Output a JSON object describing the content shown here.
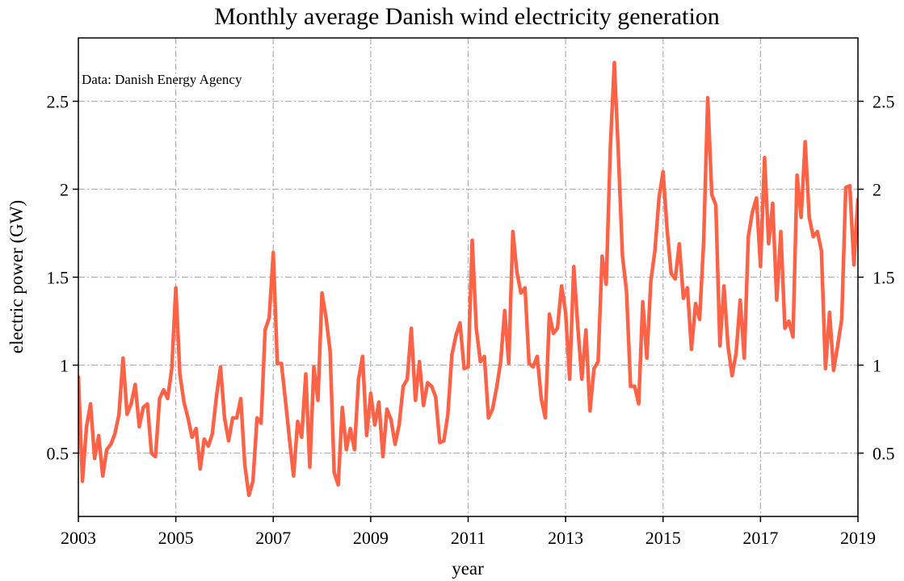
{
  "chart_data": {
    "type": "line",
    "title": "Monthly average Danish wind electricity generation",
    "annotation": "Data: Danish Energy Agency",
    "xlabel": "year",
    "ylabel": "electric power (GW)",
    "color": "#ff6347",
    "grid": true,
    "xlim": [
      2003,
      2019
    ],
    "xticks": [
      2003,
      2005,
      2007,
      2009,
      2011,
      2013,
      2015,
      2017,
      2019
    ],
    "ylim": [
      0.14,
      2.86
    ],
    "yticks": [
      0.5,
      1.0,
      1.5,
      2.0,
      2.5
    ],
    "y2lim": [
      0.14,
      2.86
    ],
    "y2ticks": [
      0.5,
      1.0,
      1.5,
      2.0,
      2.5
    ],
    "x": [
      2003,
      2003.083,
      2003.167,
      2003.25,
      2003.333,
      2003.417,
      2003.5,
      2003.583,
      2003.667,
      2003.75,
      2003.833,
      2003.917,
      2004,
      2004.083,
      2004.167,
      2004.25,
      2004.333,
      2004.417,
      2004.5,
      2004.583,
      2004.667,
      2004.75,
      2004.833,
      2004.917,
      2005,
      2005.083,
      2005.167,
      2005.25,
      2005.333,
      2005.417,
      2005.5,
      2005.583,
      2005.667,
      2005.75,
      2005.833,
      2005.917,
      2006,
      2006.083,
      2006.167,
      2006.25,
      2006.333,
      2006.417,
      2006.5,
      2006.583,
      2006.667,
      2006.75,
      2006.833,
      2006.917,
      2007,
      2007.083,
      2007.167,
      2007.25,
      2007.333,
      2007.417,
      2007.5,
      2007.583,
      2007.667,
      2007.75,
      2007.833,
      2007.917,
      2008,
      2008.083,
      2008.167,
      2008.25,
      2008.333,
      2008.417,
      2008.5,
      2008.583,
      2008.667,
      2008.75,
      2008.833,
      2008.917,
      2009,
      2009.083,
      2009.167,
      2009.25,
      2009.333,
      2009.417,
      2009.5,
      2009.583,
      2009.667,
      2009.75,
      2009.833,
      2009.917,
      2010,
      2010.083,
      2010.167,
      2010.25,
      2010.333,
      2010.417,
      2010.5,
      2010.583,
      2010.667,
      2010.75,
      2010.833,
      2010.917,
      2011,
      2011.083,
      2011.167,
      2011.25,
      2011.333,
      2011.417,
      2011.5,
      2011.583,
      2011.667,
      2011.75,
      2011.833,
      2011.917,
      2012,
      2012.083,
      2012.167,
      2012.25,
      2012.333,
      2012.417,
      2012.5,
      2012.583,
      2012.667,
      2012.75,
      2012.833,
      2012.917,
      2013,
      2013.083,
      2013.167,
      2013.25,
      2013.333,
      2013.417,
      2013.5,
      2013.583,
      2013.667,
      2013.75,
      2013.833,
      2013.917,
      2014,
      2014.083,
      2014.167,
      2014.25,
      2014.333,
      2014.417,
      2014.5,
      2014.583,
      2014.667,
      2014.75,
      2014.833,
      2014.917,
      2015,
      2015.083,
      2015.167,
      2015.25,
      2015.333,
      2015.417,
      2015.5,
      2015.583,
      2015.667,
      2015.75,
      2015.833,
      2015.917,
      2016,
      2016.083,
      2016.167,
      2016.25,
      2016.333,
      2016.417,
      2016.5,
      2016.583,
      2016.667,
      2016.75,
      2016.833,
      2016.917,
      2017,
      2017.083,
      2017.167,
      2017.25,
      2017.333,
      2017.417,
      2017.5,
      2017.583,
      2017.667,
      2017.75,
      2017.833,
      2017.917,
      2018,
      2018.083,
      2018.167,
      2018.25,
      2018.333,
      2018.417,
      2018.5,
      2018.583,
      2018.667,
      2018.75,
      2018.833,
      2018.917,
      2019
    ],
    "values": [
      0.94,
      0.34,
      0.65,
      0.78,
      0.47,
      0.6,
      0.37,
      0.52,
      0.55,
      0.61,
      0.72,
      1.04,
      0.72,
      0.78,
      0.89,
      0.65,
      0.76,
      0.78,
      0.5,
      0.48,
      0.81,
      0.86,
      0.81,
      0.98,
      1.44,
      0.95,
      0.79,
      0.7,
      0.59,
      0.64,
      0.41,
      0.58,
      0.54,
      0.61,
      0.82,
      0.99,
      0.7,
      0.57,
      0.7,
      0.7,
      0.81,
      0.43,
      0.26,
      0.34,
      0.7,
      0.67,
      1.2,
      1.27,
      1.64,
      1.01,
      1.01,
      0.8,
      0.58,
      0.37,
      0.68,
      0.59,
      0.95,
      0.42,
      0.99,
      0.8,
      1.41,
      1.27,
      1.08,
      0.39,
      0.32,
      0.76,
      0.52,
      0.64,
      0.52,
      0.92,
      1.05,
      0.6,
      0.84,
      0.66,
      0.79,
      0.48,
      0.75,
      0.69,
      0.55,
      0.66,
      0.88,
      0.92,
      1.21,
      0.8,
      1.02,
      0.77,
      0.9,
      0.88,
      0.82,
      0.56,
      0.57,
      0.72,
      1.06,
      1.17,
      1.24,
      0.98,
      0.99,
      1.71,
      1.21,
      1.02,
      1.05,
      0.7,
      0.75,
      0.87,
      1.02,
      1.31,
      1.01,
      1.76,
      1.53,
      1.41,
      1.44,
      1.01,
      0.99,
      1.05,
      0.81,
      0.7,
      1.29,
      1.18,
      1.21,
      1.45,
      1.3,
      0.92,
      1.56,
      1.22,
      0.92,
      1.2,
      0.74,
      0.98,
      1.02,
      1.62,
      1.46,
      2.23,
      2.72,
      2.2,
      1.62,
      1.42,
      0.88,
      0.88,
      0.78,
      1.36,
      1.04,
      1.48,
      1.65,
      1.95,
      2.1,
      1.77,
      1.52,
      1.49,
      1.69,
      1.38,
      1.44,
      1.09,
      1.35,
      1.26,
      1.7,
      2.52,
      1.97,
      1.91,
      1.11,
      1.45,
      1.11,
      0.94,
      1.07,
      1.37,
      1.04,
      1.73,
      1.87,
      1.95,
      1.56,
      2.18,
      1.69,
      1.92,
      1.37,
      1.76,
      1.21,
      1.25,
      1.16,
      2.08,
      1.84,
      2.27,
      1.84,
      1.73,
      1.76,
      1.65,
      0.98,
      1.3,
      0.97,
      1.11,
      1.26,
      2.01,
      2.02,
      1.57,
      1.95
    ]
  }
}
